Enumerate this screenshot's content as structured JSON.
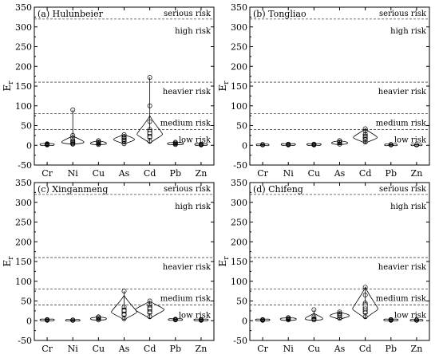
{
  "chart_data": [
    {
      "type": "violin",
      "title": "(a) Hulunbeier",
      "ylabel": "E",
      "ylabel_sub": "r",
      "ylim": [
        -50,
        350
      ],
      "yticks": [
        -50,
        0,
        50,
        100,
        150,
        200,
        250,
        300,
        350
      ],
      "categories": [
        "Cr",
        "Ni",
        "Cu",
        "As",
        "Cd",
        "Pb",
        "Zn"
      ],
      "thresholds": [
        {
          "value": 40,
          "label": "low risk"
        },
        {
          "value": 80,
          "label": "medium risk"
        },
        {
          "value": 160,
          "label": "heavier risk"
        },
        {
          "value": 320,
          "label": "high risk"
        },
        {
          "value": 320,
          "label": "serious risk"
        }
      ],
      "series": [
        {
          "category": "Cr",
          "min": 0,
          "q1": 1,
          "median": 2,
          "q3": 3,
          "max": 5,
          "points": [
            1,
            2,
            3,
            4
          ],
          "spread": 9
        },
        {
          "category": "Ni",
          "min": 2,
          "q1": 5,
          "median": 8,
          "q3": 12,
          "max": 90,
          "points": [
            3,
            5,
            8,
            12,
            18,
            25,
            90
          ],
          "spread": 14
        },
        {
          "category": "Cu",
          "min": 1,
          "q1": 3,
          "median": 5,
          "q3": 7,
          "max": 12,
          "points": [
            2,
            4,
            6,
            9,
            12
          ],
          "spread": 10
        },
        {
          "category": "As",
          "min": 3,
          "q1": 10,
          "median": 15,
          "q3": 22,
          "max": 28,
          "points": [
            4,
            10,
            14,
            18,
            22,
            27
          ],
          "spread": 13
        },
        {
          "category": "Cd",
          "min": 5,
          "q1": 18,
          "median": 28,
          "q3": 40,
          "max": 172,
          "points": [
            10,
            20,
            30,
            40,
            60,
            100,
            172
          ],
          "spread": 16
        },
        {
          "category": "Pb",
          "min": 1,
          "q1": 3,
          "median": 4,
          "q3": 6,
          "max": 8,
          "points": [
            2,
            4,
            6,
            8
          ],
          "spread": 10
        },
        {
          "category": "Zn",
          "min": 0,
          "q1": 1,
          "median": 2,
          "q3": 3,
          "max": 4,
          "points": [
            1,
            2,
            3
          ],
          "spread": 8
        }
      ]
    },
    {
      "type": "violin",
      "title": "(b) Tongliao",
      "ylabel": "E",
      "ylabel_sub": "r",
      "ylim": [
        -50,
        350
      ],
      "yticks": [
        -50,
        0,
        50,
        100,
        150,
        200,
        250,
        300,
        350
      ],
      "categories": [
        "Cr",
        "Ni",
        "Cu",
        "As",
        "Cd",
        "Pb",
        "Zn"
      ],
      "thresholds": [
        {
          "value": 40,
          "label": "low risk"
        },
        {
          "value": 80,
          "label": "medium risk"
        },
        {
          "value": 160,
          "label": "heavier risk"
        },
        {
          "value": 320,
          "label": "high risk"
        },
        {
          "value": 320,
          "label": "serious risk"
        }
      ],
      "series": [
        {
          "category": "Cr",
          "min": 0,
          "q1": 1,
          "median": 1,
          "q3": 2,
          "max": 3,
          "points": [
            1,
            2
          ],
          "spread": 8
        },
        {
          "category": "Ni",
          "min": 0,
          "q1": 1,
          "median": 2,
          "q3": 3,
          "max": 4,
          "points": [
            1,
            2,
            3
          ],
          "spread": 9
        },
        {
          "category": "Cu",
          "min": 0,
          "q1": 1,
          "median": 2,
          "q3": 3,
          "max": 4,
          "points": [
            1,
            2,
            3
          ],
          "spread": 9
        },
        {
          "category": "As",
          "min": 1,
          "q1": 4,
          "median": 6,
          "q3": 8,
          "max": 12,
          "points": [
            3,
            6,
            9,
            12
          ],
          "spread": 10
        },
        {
          "category": "Cd",
          "min": 5,
          "q1": 12,
          "median": 20,
          "q3": 28,
          "max": 42,
          "points": [
            8,
            14,
            20,
            28,
            36,
            42
          ],
          "spread": 15
        },
        {
          "category": "Pb",
          "min": 0,
          "q1": 1,
          "median": 1,
          "q3": 2,
          "max": 3,
          "points": [
            1,
            2
          ],
          "spread": 8
        },
        {
          "category": "Zn",
          "min": 0,
          "q1": 0,
          "median": 1,
          "q3": 1,
          "max": 2,
          "points": [
            1
          ],
          "spread": 7
        }
      ]
    },
    {
      "type": "violin",
      "title": "(c) Xinganmeng",
      "ylabel": "E",
      "ylabel_sub": "r",
      "ylim": [
        -50,
        350
      ],
      "yticks": [
        -50,
        0,
        50,
        100,
        150,
        200,
        250,
        300,
        350
      ],
      "categories": [
        "Cr",
        "Ni",
        "Cu",
        "As",
        "Cd",
        "Pb",
        "Zn"
      ],
      "thresholds": [
        {
          "value": 40,
          "label": "low risk"
        },
        {
          "value": 80,
          "label": "medium risk"
        },
        {
          "value": 160,
          "label": "heavier risk"
        },
        {
          "value": 320,
          "label": "high risk"
        },
        {
          "value": 320,
          "label": "serious risk"
        }
      ],
      "series": [
        {
          "category": "Cr",
          "min": 0,
          "q1": 1,
          "median": 2,
          "q3": 3,
          "max": 4,
          "points": [
            1,
            2,
            3
          ],
          "spread": 9
        },
        {
          "category": "Ni",
          "min": 0,
          "q1": 1,
          "median": 1,
          "q3": 2,
          "max": 3,
          "points": [
            1,
            2
          ],
          "spread": 9
        },
        {
          "category": "Cu",
          "min": 1,
          "q1": 3,
          "median": 5,
          "q3": 7,
          "max": 10,
          "points": [
            2,
            5,
            8,
            10
          ],
          "spread": 10
        },
        {
          "category": "As",
          "min": 2,
          "q1": 12,
          "median": 22,
          "q3": 32,
          "max": 75,
          "points": [
            5,
            15,
            25,
            35,
            75
          ],
          "spread": 16
        },
        {
          "category": "Cd",
          "min": 5,
          "q1": 18,
          "median": 28,
          "q3": 38,
          "max": 50,
          "points": [
            10,
            20,
            30,
            40,
            50
          ],
          "spread": 18
        },
        {
          "category": "Pb",
          "min": 1,
          "q1": 2,
          "median": 3,
          "q3": 4,
          "max": 5,
          "points": [
            2,
            3,
            4
          ],
          "spread": 9
        },
        {
          "category": "Zn",
          "min": 0,
          "q1": 1,
          "median": 2,
          "q3": 3,
          "max": 4,
          "points": [
            1,
            2,
            3
          ],
          "spread": 9
        }
      ]
    },
    {
      "type": "violin",
      "title": "(d) Chifeng",
      "ylabel": "E",
      "ylabel_sub": "r",
      "ylim": [
        -50,
        350
      ],
      "yticks": [
        -50,
        0,
        50,
        100,
        150,
        200,
        250,
        300,
        350
      ],
      "categories": [
        "Cr",
        "Ni",
        "Cu",
        "As",
        "Cd",
        "Pb",
        "Zn"
      ],
      "thresholds": [
        {
          "value": 40,
          "label": "low risk"
        },
        {
          "value": 80,
          "label": "medium risk"
        },
        {
          "value": 160,
          "label": "heavier risk"
        },
        {
          "value": 320,
          "label": "high risk"
        },
        {
          "value": 320,
          "label": "serious risk"
        }
      ],
      "series": [
        {
          "category": "Cr",
          "min": 0,
          "q1": 1,
          "median": 2,
          "q3": 3,
          "max": 4,
          "points": [
            1,
            2,
            3
          ],
          "spread": 9
        },
        {
          "category": "Ni",
          "min": 0,
          "q1": 2,
          "median": 4,
          "q3": 6,
          "max": 8,
          "points": [
            2,
            4,
            6,
            8
          ],
          "spread": 10
        },
        {
          "category": "Cu",
          "min": 0,
          "q1": 2,
          "median": 5,
          "q3": 8,
          "max": 28,
          "points": [
            2,
            5,
            10,
            28
          ],
          "spread": 11
        },
        {
          "category": "As",
          "min": 3,
          "q1": 8,
          "median": 13,
          "q3": 18,
          "max": 22,
          "points": [
            6,
            12,
            18,
            22
          ],
          "spread": 12
        },
        {
          "category": "Cd",
          "min": 5,
          "q1": 18,
          "median": 30,
          "q3": 45,
          "max": 85,
          "points": [
            10,
            20,
            30,
            45,
            65,
            85
          ],
          "spread": 16
        },
        {
          "category": "Pb",
          "min": 0,
          "q1": 1,
          "median": 2,
          "q3": 3,
          "max": 4,
          "points": [
            1,
            2,
            3
          ],
          "spread": 9
        },
        {
          "category": "Zn",
          "min": 0,
          "q1": 1,
          "median": 1,
          "q3": 2,
          "max": 3,
          "points": [
            1,
            2
          ],
          "spread": 8
        }
      ]
    }
  ]
}
